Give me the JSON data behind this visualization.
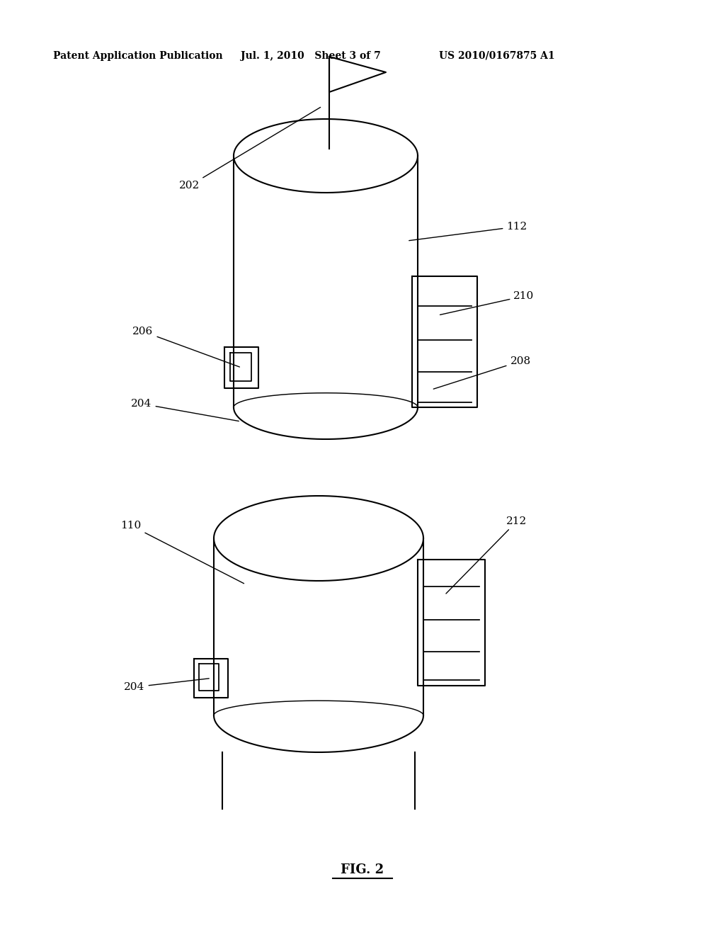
{
  "bg_color": "#ffffff",
  "line_color": "#000000",
  "header_left": "Patent Application Publication",
  "header_mid": "Jul. 1, 2010   Sheet 3 of 7",
  "header_right": "US 2010/0167875 A1",
  "footer": "FIG. 2",
  "lw": 1.5,
  "fs_header": 10,
  "fs_label": 11,
  "fs_footer": 13
}
